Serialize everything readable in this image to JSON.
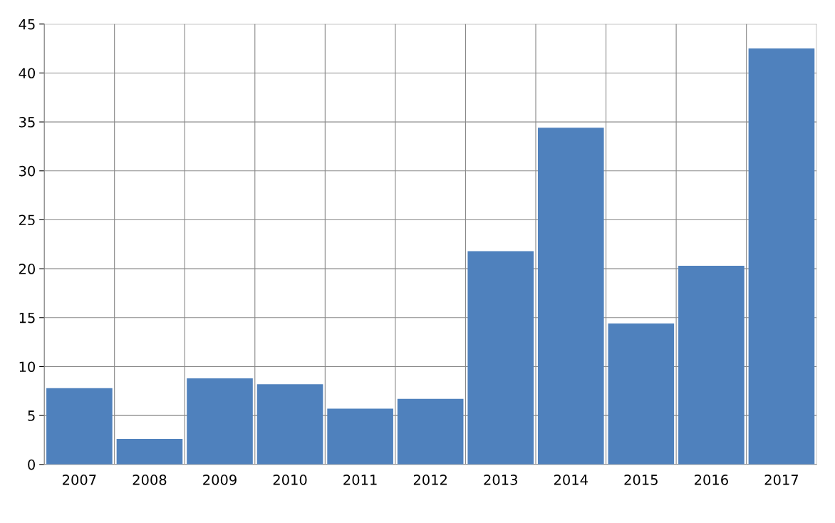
{
  "chart_data": {
    "type": "bar",
    "categories": [
      "2007",
      "2008",
      "2009",
      "2010",
      "2011",
      "2012",
      "2013",
      "2014",
      "2015",
      "2016",
      "2017"
    ],
    "values": [
      7.8,
      2.6,
      8.8,
      8.2,
      5.7,
      6.7,
      21.8,
      34.4,
      14.4,
      20.3,
      42.5
    ],
    "color": "#4f81bd",
    "ylim": [
      0,
      45
    ],
    "yticks": [
      0,
      5,
      10,
      15,
      20,
      25,
      30,
      35,
      40,
      45
    ],
    "grid": true
  }
}
